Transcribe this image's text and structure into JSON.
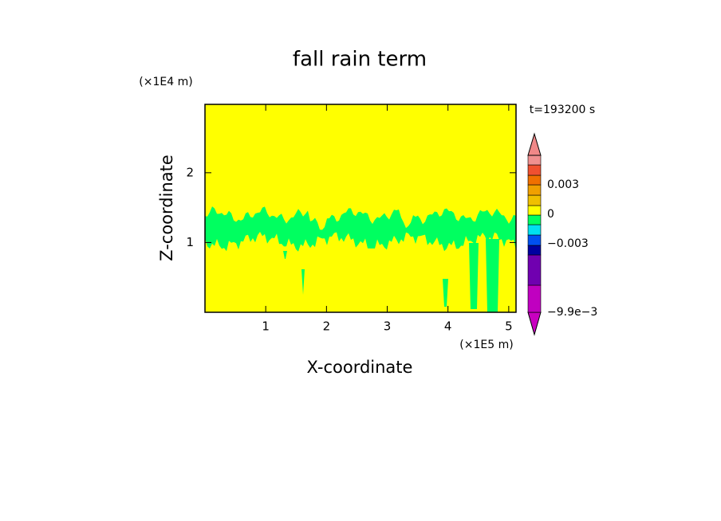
{
  "chart_data": {
    "type": "contour",
    "title": "fall rain term",
    "xlabel": "X-coordinate",
    "ylabel": "Z-coordinate",
    "xunit": "(×1E5 m)",
    "yunit": "(×1E4 m)",
    "annotation": "t=193200 s",
    "xlim": [
      0,
      5.12
    ],
    "ylim": [
      0,
      2.98
    ],
    "xticks": [
      1,
      2,
      3,
      4,
      5
    ],
    "yticks": [
      1,
      2
    ],
    "background_color": "#ffff00",
    "region_color": "#00ff60",
    "colorbar": {
      "colors": [
        "#c800c0",
        "#c000c0",
        "#7000b0",
        "#0000a0",
        "#0050f0",
        "#00e0f0",
        "#00ff60",
        "#ffff00",
        "#f0c000",
        "#f0a000",
        "#f07000",
        "#f05030",
        "#f09090",
        "#f08888"
      ],
      "labels": [
        "−9.9e−3",
        "−0.003",
        "0",
        "0.003"
      ]
    }
  }
}
